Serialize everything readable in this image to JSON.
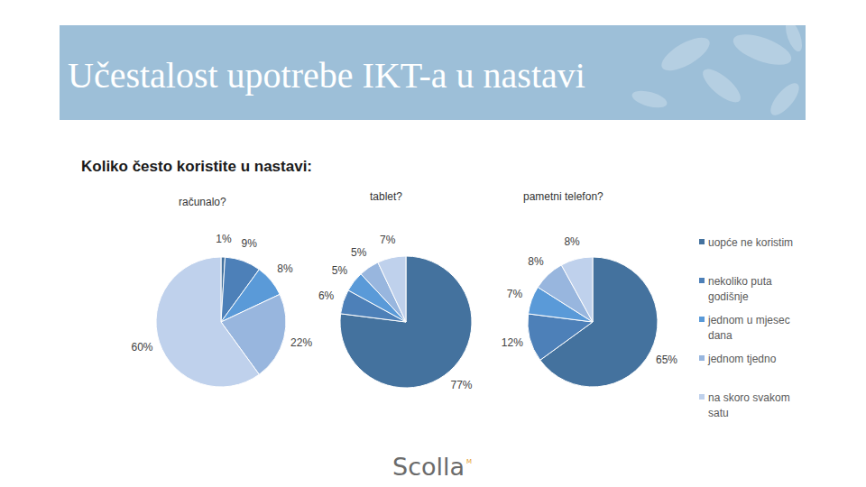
{
  "header": {
    "title": "Učestalost upotrebe IKT-a u nastavi"
  },
  "subtitle": "Koliko često koristite u nastavi:",
  "logo": {
    "text": "Scolla",
    "mark": "M"
  },
  "chart_data": [
    {
      "type": "pie",
      "title": "računalo?",
      "categories": [
        "uopće ne koristim",
        "nekoliko puta godišnje",
        "jednom u mjesec dana",
        "jednom tjedno",
        "na skoro svakom satu"
      ],
      "values": [
        1,
        9,
        8,
        22,
        60
      ],
      "value_labels": [
        "1%",
        "9%",
        "8%",
        "22%",
        "60%"
      ],
      "colors": [
        "#44729e",
        "#4d80b8",
        "#5a9ad8",
        "#98b6de",
        "#bfd1ec"
      ],
      "data_labels": true
    },
    {
      "type": "pie",
      "title": "tablet?",
      "categories": [
        "uopće ne koristim",
        "nekoliko puta godišnje",
        "jednom u mjesec dana",
        "jednom tjedno",
        "na skoro svakom satu"
      ],
      "values": [
        77,
        6,
        5,
        5,
        7
      ],
      "value_labels": [
        "77%",
        "6%",
        "5%",
        "5%",
        "7%"
      ],
      "colors": [
        "#44729e",
        "#4d80b8",
        "#5a9ad8",
        "#98b6de",
        "#bfd1ec"
      ],
      "data_labels": true
    },
    {
      "type": "pie",
      "title": "pametni telefon?",
      "categories": [
        "uopće ne koristim",
        "nekoliko puta godišnje",
        "jednom u mjesec dana",
        "jednom tjedno",
        "na skoro svakom satu"
      ],
      "values": [
        65,
        12,
        7,
        8,
        8
      ],
      "value_labels": [
        "65%",
        "12%",
        "7%",
        "8%",
        "8%"
      ],
      "colors": [
        "#44729e",
        "#4d80b8",
        "#5a9ad8",
        "#98b6de",
        "#bfd1ec"
      ],
      "data_labels": true,
      "legend": "right"
    }
  ]
}
